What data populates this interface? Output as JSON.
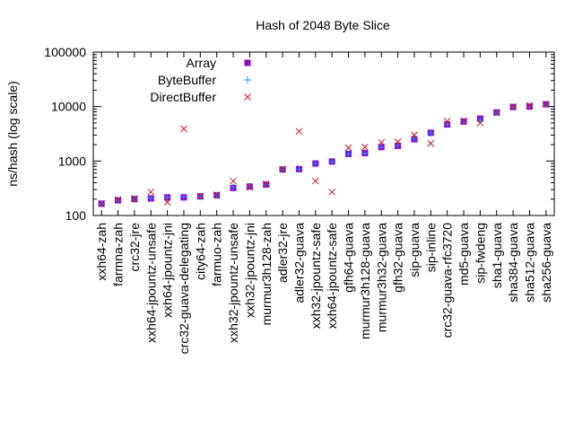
{
  "chart_data": {
    "type": "scatter",
    "title": "Hash of 2048 Byte Slice",
    "xlabel": "",
    "ylabel": "ns/hash (log scale)",
    "y_scale": "log",
    "ylim": [
      100,
      100000
    ],
    "y_ticks": [
      "100",
      "1000",
      "10000",
      "100000"
    ],
    "grid": false,
    "legend_position": "top-left",
    "categories": [
      "xxh64-zah",
      "farmna-zah",
      "crc32-jre",
      "xxh64-jpountz-unsafe",
      "xxh64-jpountz-jni",
      "crc32-guava-delegating",
      "city64-zah",
      "farmuo-zah",
      "xxh32-jpountz-unsafe",
      "xxh32-jpountz-jni",
      "murmur3h128-zah",
      "adler32-jre",
      "adler32-guava",
      "xxh32-jpountz-safe",
      "xxh64-jpountz-safe",
      "gfh64-guava",
      "murmur3h128-guava",
      "murmur3h32-guava",
      "gfh32-guava",
      "sip-guava",
      "sip-inline",
      "crc32-guava-rfc3720",
      "md5-guava",
      "sip-fwdeng",
      "sha1-guava",
      "sha384-guava",
      "sha512-guava",
      "sha256-guava"
    ],
    "series": [
      {
        "name": "Array",
        "marker": "square",
        "color": "#9400d3",
        "values": [
          165,
          190,
          200,
          205,
          215,
          215,
          225,
          235,
          320,
          340,
          370,
          700,
          710,
          900,
          980,
          1350,
          1400,
          1800,
          1900,
          2500,
          3300,
          4700,
          5300,
          6000,
          7800,
          9800,
          10000,
          11000
        ]
      },
      {
        "name": "ByteBuffer",
        "marker": "plus",
        "color": "#1e90ff",
        "values": [
          165,
          190,
          200,
          210,
          215,
          220,
          225,
          235,
          330,
          340,
          370,
          700,
          710,
          900,
          980,
          1350,
          1400,
          1800,
          1950,
          2550,
          3250,
          4700,
          5300,
          5600,
          7800,
          9800,
          10000,
          11000
        ]
      },
      {
        "name": "DirectBuffer",
        "marker": "cross",
        "color": "#c8141e",
        "values": [
          165,
          195,
          205,
          270,
          175,
          3900,
          225,
          240,
          430,
          330,
          380,
          710,
          3500,
          430,
          270,
          1750,
          1800,
          2200,
          2250,
          3000,
          2100,
          5400,
          5500,
          5000,
          7700,
          9900,
          10500,
          11000
        ]
      }
    ]
  }
}
